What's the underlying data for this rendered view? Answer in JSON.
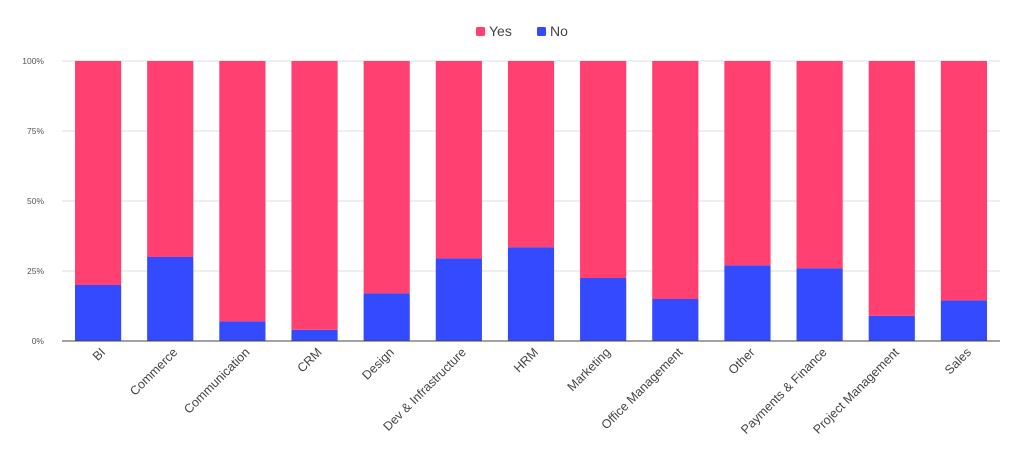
{
  "chart_data": {
    "type": "bar",
    "stacked": true,
    "percent": true,
    "title": "",
    "xlabel": "",
    "ylabel": "",
    "ylim": [
      0,
      100
    ],
    "yticks": [
      "0%",
      "25%",
      "50%",
      "75%",
      "100%"
    ],
    "grid": true,
    "legend_position": "top",
    "categories": [
      "BI",
      "Commerce",
      "Communication",
      "CRM",
      "Design",
      "Dev & Infrastructure",
      "HRM",
      "Marketing",
      "Office Management",
      "Other",
      "Payments & Finance",
      "Project Management",
      "Sales"
    ],
    "series": [
      {
        "name": "Yes",
        "color": "#ff4070",
        "values": [
          80,
          70,
          93,
          96,
          83,
          70.5,
          66.5,
          77.5,
          85,
          73,
          74,
          91,
          85.5
        ]
      },
      {
        "name": "No",
        "color": "#334aff",
        "values": [
          20,
          30,
          7,
          4,
          17,
          29.5,
          33.5,
          22.5,
          15,
          27,
          26,
          9,
          14.5
        ]
      }
    ]
  }
}
